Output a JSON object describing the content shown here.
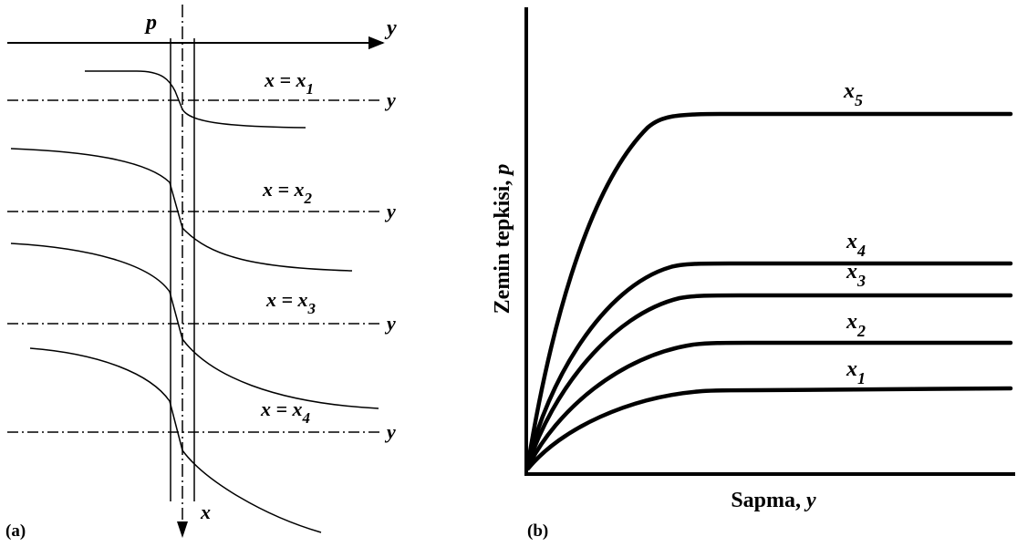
{
  "panel_a": {
    "tag": "(a)",
    "p_label": "p",
    "y_label": "y",
    "x_label": "x",
    "rows": [
      {
        "eq": "x = x",
        "sub": "1",
        "axis_label": "y"
      },
      {
        "eq": "x = x",
        "sub": "2",
        "axis_label": "y"
      },
      {
        "eq": "x = x",
        "sub": "3",
        "axis_label": "y"
      },
      {
        "eq": "x = x",
        "sub": "4",
        "axis_label": "y"
      }
    ]
  },
  "panel_b": {
    "tag": "(b)",
    "ylabel_text": "Zemin tepkisi, ",
    "ylabel_var": "p",
    "xlabel_text": "Sapma, ",
    "xlabel_var": "y",
    "curves": [
      {
        "var": "x",
        "sub": "5"
      },
      {
        "var": "x",
        "sub": "4"
      },
      {
        "var": "x",
        "sub": "3"
      },
      {
        "var": "x",
        "sub": "2"
      },
      {
        "var": "x",
        "sub": "1"
      }
    ]
  }
}
